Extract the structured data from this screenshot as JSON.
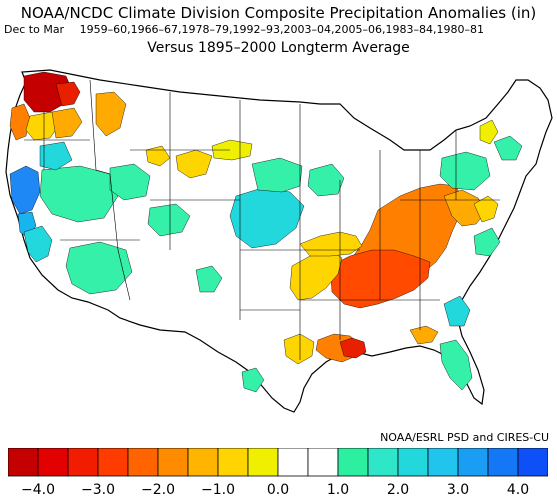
{
  "header": {
    "title": "NOAA/NCDC Climate Division Composite Precipitation Anomalies (in)",
    "season": "Dec to Mar",
    "periods": "1959–60,1966–67,1978–79,1992–93,2003–04,2005–06,1983–84,1980–81",
    "baseline": "Versus 1895–2000 Longterm Average"
  },
  "credit": "NOAA/ESRL PSD and CIRES-CU",
  "colorbar": {
    "colors": [
      "#c40000",
      "#e20000",
      "#f21c00",
      "#ff3c00",
      "#ff6400",
      "#ff8c00",
      "#ffb400",
      "#ffd400",
      "#f0ef00",
      "#ffffff",
      "#ffffff",
      "#2cf0a0",
      "#2ee6c8",
      "#22d8dc",
      "#20c4ec",
      "#1a9ef4",
      "#1478f6",
      "#0e50f8"
    ],
    "ticks": [
      "−4.0",
      "−3.0",
      "−2.0",
      "−1.0",
      "0.0",
      "1.0",
      "2.0",
      "3.0",
      "4.0"
    ]
  },
  "map": {
    "anomaly_classes": [
      "dry",
      "wet",
      "neutral"
    ],
    "region_colors": {
      "dark_red": "#c40000",
      "red": "#e82000",
      "orange_red": "#ff4a00",
      "orange": "#ff8000",
      "light_orange": "#ffaa00",
      "yellow": "#ffd500",
      "yellow_green": "#f0ef00",
      "mint": "#34f0a8",
      "aqua": "#22d8dc",
      "sky": "#18b4f0",
      "blue": "#1e88f4"
    }
  }
}
